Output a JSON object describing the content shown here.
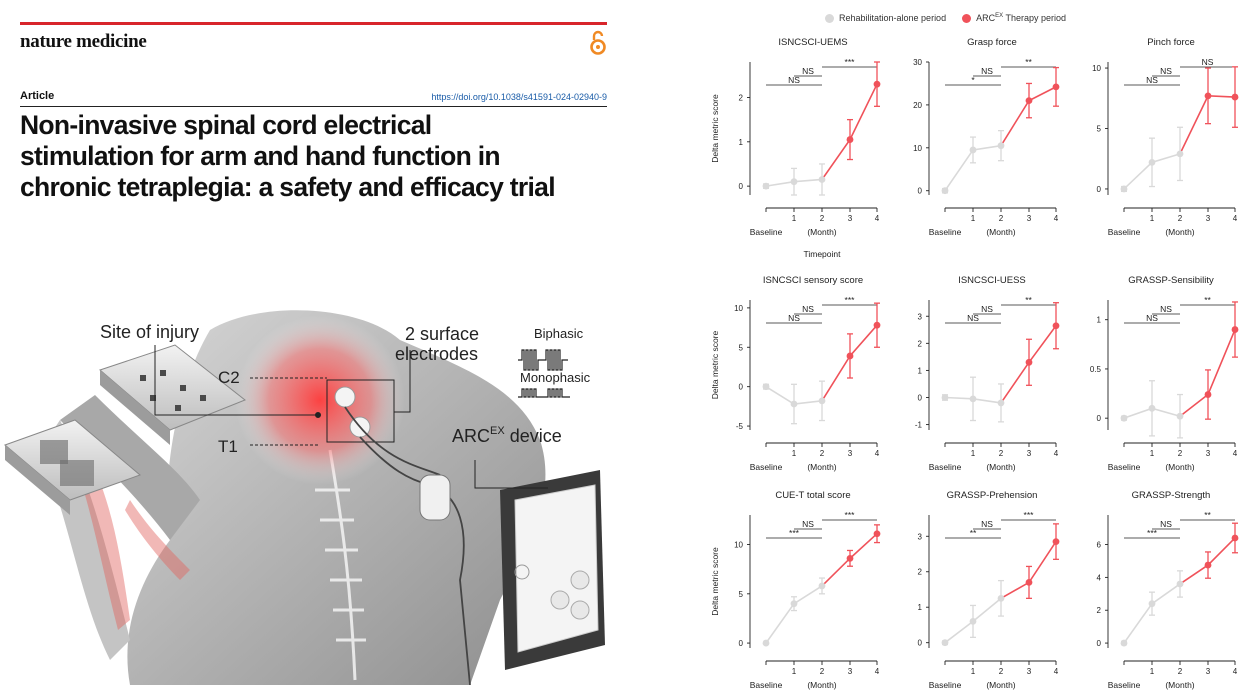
{
  "journal": {
    "name": "nature medicine",
    "oa_icon": "open-access-icon"
  },
  "article": {
    "type": "Article",
    "doi": "https://doi.org/10.1038/s41591-024-02940-9",
    "title_lines": [
      "Non-invasive spinal cord electrical",
      "stimulation for arm and hand function in",
      "chronic tetraplegia: a safety and efficacy trial"
    ]
  },
  "figure": {
    "site_of_injury": "Site of injury",
    "electrodes_line1": "2 surface",
    "electrodes_line2": "electrodes",
    "c2": "C2",
    "t1": "T1",
    "biphasic": "Biphasic",
    "monophasic": "Monophasic",
    "device_prefix": "ARC",
    "device_sup": "EX",
    "device_suffix": " device"
  },
  "legend": {
    "rehab_label": "Rehabilitation-alone period",
    "arc_prefix": "ARC",
    "arc_sup": "EX",
    "arc_suffix": " Therapy period",
    "rehab_color": "#d9d9d9",
    "arc_color": "#f0525a"
  },
  "axis_common": {
    "ylabel": "Delta metric score",
    "x_ticks": [
      "1",
      "2",
      "3",
      "4"
    ],
    "baseline": "Baseline",
    "month": "(Month)",
    "timepoint": "Timepoint"
  },
  "chart_data": [
    {
      "type": "line",
      "title": "ISNCSCI-UEMS",
      "ylim": [
        -0.2,
        2.8
      ],
      "yticks": [
        0,
        1,
        2
      ],
      "values": [
        0,
        0.1,
        0.15,
        1.05,
        2.3
      ],
      "err": [
        0.05,
        0.3,
        0.35,
        0.45,
        0.5
      ],
      "sig": [
        {
          "label": "NS",
          "from": 0,
          "to": 2,
          "level": 0
        },
        {
          "label": "NS",
          "from": 1,
          "to": 2,
          "level": 1
        },
        {
          "label": "***",
          "from": 2,
          "to": 4,
          "level": 2
        }
      ]
    },
    {
      "type": "line",
      "title": "Grasp force",
      "ylim": [
        -1,
        30
      ],
      "yticks": [
        0,
        10,
        20,
        30
      ],
      "values": [
        0,
        9.5,
        10.5,
        21,
        24.2
      ],
      "err": [
        0.5,
        3,
        3.5,
        4,
        4.5
      ],
      "sig": [
        {
          "label": "*",
          "from": 0,
          "to": 2,
          "level": 0
        },
        {
          "label": "NS",
          "from": 1,
          "to": 2,
          "level": 1
        },
        {
          "label": "**",
          "from": 2,
          "to": 4,
          "level": 2
        }
      ]
    },
    {
      "type": "line",
      "title": "Pinch force",
      "ylim": [
        -0.5,
        10.5
      ],
      "yticks": [
        0,
        5,
        10
      ],
      "values": [
        0,
        2.2,
        2.9,
        7.7,
        7.6
      ],
      "err": [
        0.2,
        2,
        2.2,
        2.3,
        2.5
      ],
      "sig": [
        {
          "label": "NS",
          "from": 0,
          "to": 2,
          "level": 0
        },
        {
          "label": "NS",
          "from": 1,
          "to": 2,
          "level": 1
        },
        {
          "label": "NS",
          "from": 2,
          "to": 4,
          "level": 2
        }
      ]
    },
    {
      "type": "line",
      "title": "ISNCSCI sensory score",
      "ylim": [
        -5.5,
        11
      ],
      "yticks": [
        -5,
        0,
        5,
        10
      ],
      "values": [
        0,
        -2.2,
        -1.8,
        3.9,
        7.8
      ],
      "err": [
        0.3,
        2.5,
        2.5,
        2.8,
        2.8
      ],
      "sig": [
        {
          "label": "NS",
          "from": 0,
          "to": 2,
          "level": 0
        },
        {
          "label": "NS",
          "from": 1,
          "to": 2,
          "level": 1
        },
        {
          "label": "***",
          "from": 2,
          "to": 4,
          "level": 2
        }
      ]
    },
    {
      "type": "line",
      "title": "ISNCSCI-UESS",
      "ylim": [
        -1.2,
        3.6
      ],
      "yticks": [
        -1,
        0,
        1,
        2,
        3
      ],
      "values": [
        0,
        -0.05,
        -0.2,
        1.3,
        2.65
      ],
      "err": [
        0.1,
        0.8,
        0.7,
        0.85,
        0.85
      ],
      "sig": [
        {
          "label": "NS",
          "from": 0,
          "to": 2,
          "level": 0
        },
        {
          "label": "NS",
          "from": 1,
          "to": 2,
          "level": 1
        },
        {
          "label": "**",
          "from": 2,
          "to": 4,
          "level": 2
        }
      ]
    },
    {
      "type": "line",
      "title": "GRASSP-Sensibility",
      "ylim": [
        -0.12,
        1.2
      ],
      "yticks": [
        0,
        0.5,
        1
      ],
      "values": [
        0,
        0.1,
        0.02,
        0.24,
        0.9
      ],
      "err": [
        0.02,
        0.28,
        0.22,
        0.25,
        0.28
      ],
      "sig": [
        {
          "label": "NS",
          "from": 0,
          "to": 2,
          "level": 0
        },
        {
          "label": "NS",
          "from": 1,
          "to": 2,
          "level": 1
        },
        {
          "label": "**",
          "from": 2,
          "to": 4,
          "level": 2
        }
      ]
    },
    {
      "type": "line",
      "title": "CUE-T total score",
      "ylim": [
        -0.5,
        13
      ],
      "yticks": [
        0,
        5,
        10
      ],
      "values": [
        0,
        4,
        5.8,
        8.6,
        11.1
      ],
      "err": [
        0.1,
        0.7,
        0.8,
        0.8,
        0.9
      ],
      "sig": [
        {
          "label": "***",
          "from": 0,
          "to": 2,
          "level": 0
        },
        {
          "label": "NS",
          "from": 1,
          "to": 2,
          "level": 1
        },
        {
          "label": "***",
          "from": 2,
          "to": 4,
          "level": 2
        }
      ]
    },
    {
      "type": "line",
      "title": "GRASSP-Prehension",
      "ylim": [
        -0.15,
        3.6
      ],
      "yticks": [
        0,
        1,
        2,
        3
      ],
      "values": [
        0,
        0.6,
        1.25,
        1.7,
        2.85
      ],
      "err": [
        0.05,
        0.45,
        0.5,
        0.45,
        0.5
      ],
      "sig": [
        {
          "label": "**",
          "from": 0,
          "to": 2,
          "level": 0
        },
        {
          "label": "NS",
          "from": 1,
          "to": 2,
          "level": 1
        },
        {
          "label": "***",
          "from": 2,
          "to": 4,
          "level": 2
        }
      ]
    },
    {
      "type": "line",
      "title": "GRASSP-Strength",
      "ylim": [
        -0.3,
        7.8
      ],
      "yticks": [
        0,
        2,
        4,
        6
      ],
      "values": [
        0,
        2.4,
        3.6,
        4.75,
        6.4
      ],
      "err": [
        0.1,
        0.7,
        0.8,
        0.8,
        0.9
      ],
      "sig": [
        {
          "label": "***",
          "from": 0,
          "to": 2,
          "level": 0
        },
        {
          "label": "NS",
          "from": 1,
          "to": 2,
          "level": 1
        },
        {
          "label": "**",
          "from": 2,
          "to": 4,
          "level": 2
        }
      ]
    }
  ]
}
